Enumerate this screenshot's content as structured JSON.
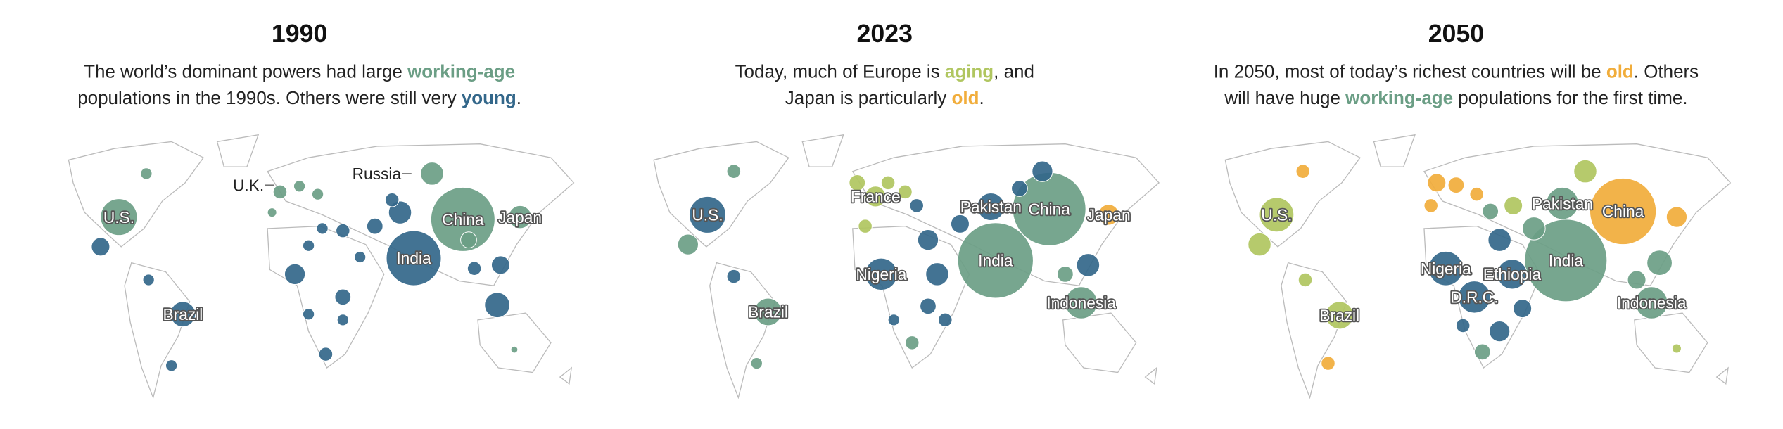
{
  "panels": [
    {
      "title": "1990",
      "subtitle": [
        [
          {
            "text": "The world’s dominant powers had large "
          },
          {
            "text": "working-age",
            "color": "#6b9e85"
          }
        ],
        [
          {
            "text": "populations in the 1990s. Others were still very "
          },
          {
            "text": "young",
            "color": "#33678a"
          },
          {
            "text": "."
          }
        ]
      ],
      "labels": [
        "U.S.",
        "U.K.",
        "Russia",
        "China",
        "Japan",
        "India",
        "Brazil"
      ]
    },
    {
      "title": "2023",
      "subtitle": [
        [
          {
            "text": "Today, much of Europe is "
          },
          {
            "text": "aging",
            "color": "#b0c660"
          },
          {
            "text": ", and"
          }
        ],
        [
          {
            "text": "Japan is particularly "
          },
          {
            "text": "old",
            "color": "#f1ad3b"
          },
          {
            "text": "."
          }
        ]
      ],
      "labels": [
        "U.S.",
        "France",
        "Pakistan",
        "China",
        "Japan",
        "Nigeria",
        "India",
        "Brazil",
        "Indonesia"
      ]
    },
    {
      "title": "2050",
      "subtitle": [
        [
          {
            "text": "In 2050, most of today’s richest countries will be "
          },
          {
            "text": "old",
            "color": "#f1ad3b"
          },
          {
            "text": ". Others"
          }
        ],
        [
          {
            "text": "will have huge "
          },
          {
            "text": "working-age",
            "color": "#6b9e85"
          },
          {
            "text": " populations for the first time."
          }
        ]
      ],
      "labels": [
        "U.S.",
        "Pakistan",
        "China",
        "Nigeria",
        "Ethiopia",
        "India",
        "D.R.C.",
        "Brazil",
        "Indonesia"
      ]
    }
  ]
}
